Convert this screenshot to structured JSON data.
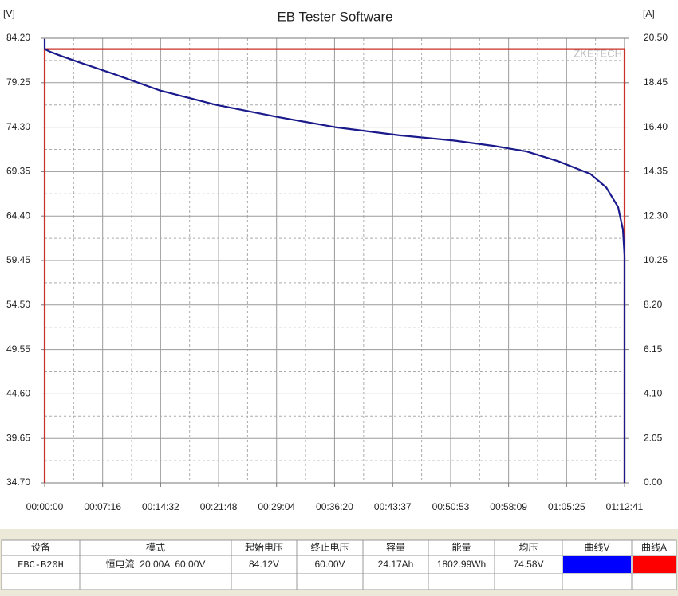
{
  "chart_data": {
    "type": "line",
    "title": "EB Tester Software",
    "y_label": "[V]",
    "y2_label": "[A]",
    "watermark": "ZKETECH",
    "grid": true,
    "xlim": [
      0,
      4361
    ],
    "xticks": [
      {
        "value": 0,
        "label": "00:00:00"
      },
      {
        "value": 436,
        "label": "00:07:16"
      },
      {
        "value": 872,
        "label": "00:14:32"
      },
      {
        "value": 1308,
        "label": "00:21:48"
      },
      {
        "value": 1744,
        "label": "00:29:04"
      },
      {
        "value": 2180,
        "label": "00:36:20"
      },
      {
        "value": 2617,
        "label": "00:43:37"
      },
      {
        "value": 3053,
        "label": "00:50:53"
      },
      {
        "value": 3489,
        "label": "00:58:09"
      },
      {
        "value": 3925,
        "label": "01:05:25"
      },
      {
        "value": 4361,
        "label": "01:12:41"
      }
    ],
    "ylim": [
      34.7,
      84.2
    ],
    "yticks": [
      {
        "value": 34.7,
        "label": "34.70"
      },
      {
        "value": 39.65,
        "label": "39.65"
      },
      {
        "value": 44.6,
        "label": "44.60"
      },
      {
        "value": 49.55,
        "label": "49.55"
      },
      {
        "value": 54.5,
        "label": "54.50"
      },
      {
        "value": 59.45,
        "label": "59.45"
      },
      {
        "value": 64.4,
        "label": "64.40"
      },
      {
        "value": 69.35,
        "label": "69.35"
      },
      {
        "value": 74.3,
        "label": "74.30"
      },
      {
        "value": 79.25,
        "label": "79.25"
      },
      {
        "value": 84.2,
        "label": "84.20"
      }
    ],
    "y2lim": [
      0,
      20.5
    ],
    "y2ticks": [
      {
        "value": 0,
        "label": "0.00"
      },
      {
        "value": 2.05,
        "label": "2.05"
      },
      {
        "value": 4.1,
        "label": "4.10"
      },
      {
        "value": 6.15,
        "label": "6.15"
      },
      {
        "value": 8.2,
        "label": "8.20"
      },
      {
        "value": 10.25,
        "label": "10.25"
      },
      {
        "value": 12.3,
        "label": "12.30"
      },
      {
        "value": 14.35,
        "label": "14.35"
      },
      {
        "value": 16.4,
        "label": "16.40"
      },
      {
        "value": 18.45,
        "label": "18.45"
      },
      {
        "value": 20.5,
        "label": "20.50"
      }
    ],
    "series": [
      {
        "name": "曲线A",
        "axis": "y2",
        "color": "#ff0000",
        "line_color": "#c8302a",
        "x": [
          0,
          0,
          4361,
          4361
        ],
        "values": [
          0,
          20.0,
          20.0,
          0
        ]
      },
      {
        "name": "曲线V",
        "color": "#0000ff",
        "line_color": "#1a1a8c",
        "x": [
          0,
          0,
          40,
          130,
          264,
          504,
          864,
          1284,
          1764,
          2184,
          2663,
          3083,
          3383,
          3623,
          3863,
          4103,
          4223,
          4313,
          4349,
          4361,
          4361
        ],
        "values": [
          84.12,
          83.0,
          82.7,
          82.2,
          81.5,
          80.3,
          78.4,
          76.8,
          75.4,
          74.3,
          73.4,
          72.8,
          72.2,
          71.6,
          70.5,
          69.1,
          67.6,
          65.4,
          62.9,
          60.0,
          34.7
        ]
      }
    ]
  },
  "table": {
    "header": [
      "设备",
      "模式",
      "起始电压",
      "终止电压",
      "容量",
      "能量",
      "均压"
    ],
    "rows": [
      [
        "EBC-B20H",
        "恒电流  20.00A  60.00V",
        "84.12V",
        "60.00V",
        "24.17Ah",
        "1802.99Wh",
        "74.58V"
      ]
    ]
  }
}
